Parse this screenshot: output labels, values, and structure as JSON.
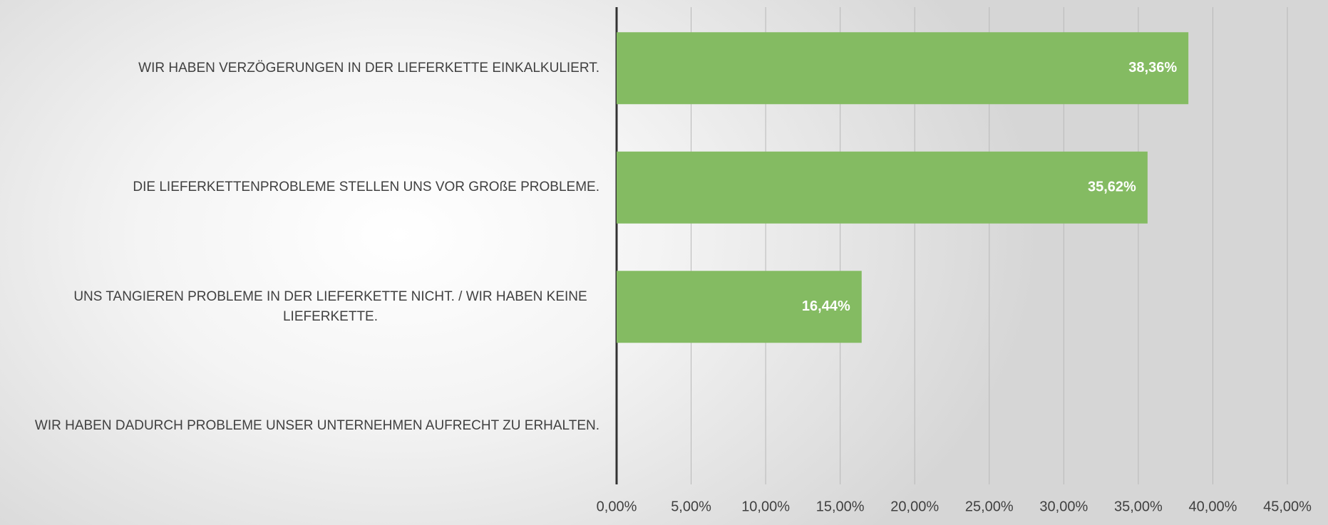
{
  "chart_data": {
    "type": "bar",
    "orientation": "horizontal",
    "categories": [
      "WIR HABEN VERZÖGERUNGEN IN DER LIEFERKETTE EINKALKULIERT.",
      "DIE LIEFERKETTENPROBLEME STELLEN UNS VOR GROßE PROBLEME.",
      "UNS TANGIEREN PROBLEME IN DER LIEFERKETTE NICHT. / WIR HABEN KEINE LIEFERKETTE.",
      "WIR HABEN DADURCH PROBLEME UNSER UNTERNEHMEN AUFRECHT ZU ERHALTEN."
    ],
    "values": [
      38.36,
      35.62,
      16.44,
      null
    ],
    "value_labels": [
      "38,36%",
      "35,62%",
      "16,44%",
      null
    ],
    "color": "#84bb62",
    "xlim": [
      0,
      45
    ],
    "xticks": [
      {
        "value": 0,
        "label": "0,00%"
      },
      {
        "value": 5,
        "label": "5,00%"
      },
      {
        "value": 10,
        "label": "10,00%"
      },
      {
        "value": 15,
        "label": "15,00%"
      },
      {
        "value": 20,
        "label": "20,00%"
      },
      {
        "value": 25,
        "label": "25,00%"
      },
      {
        "value": 30,
        "label": "30,00%"
      },
      {
        "value": 35,
        "label": "35,00%"
      },
      {
        "value": 40,
        "label": "40,00%"
      },
      {
        "value": 45,
        "label": "45,00%"
      }
    ],
    "grid": true
  }
}
